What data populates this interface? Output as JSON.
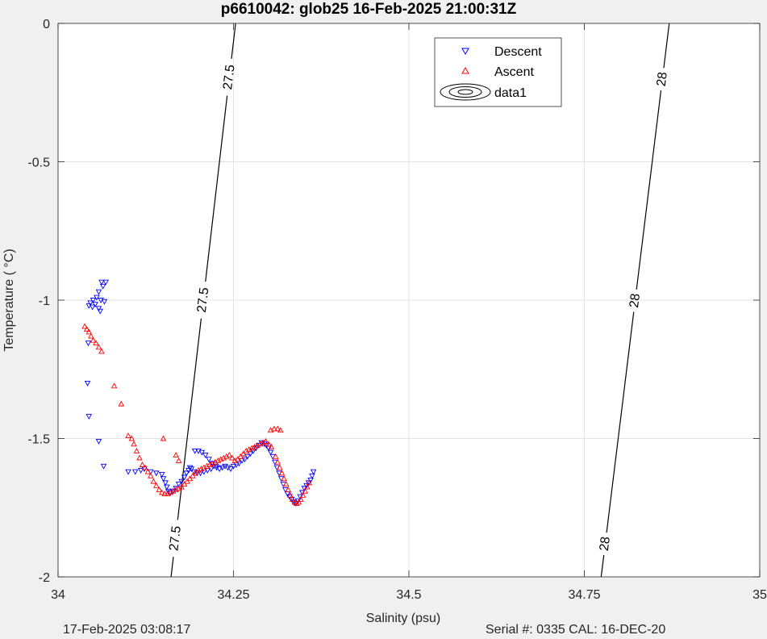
{
  "title": "p6610042: glob25 16-Feb-2025 21:00:31Z",
  "footer": {
    "timestamp": "17-Feb-2025 03:08:17",
    "serial_cal": "Serial #: 0335  CAL: 16-DEC-20"
  },
  "colors": {
    "descent": "#0000ff",
    "ascent": "#ff0000",
    "contour": "#000000",
    "grid": "#e3e3e3",
    "background": "#f0f0f0",
    "plot_bg": "#ffffff"
  },
  "chart_data": {
    "type": "scatter",
    "title": "p6610042: glob25 16-Feb-2025 21:00:31Z",
    "xlabel": "Salinity (psu)",
    "ylabel": "Temperature (   °C)",
    "xlim": [
      34,
      35
    ],
    "ylim": [
      -2,
      0
    ],
    "xticks": [
      34,
      34.25,
      34.5,
      34.75,
      35
    ],
    "xtick_labels": [
      "34",
      "34.25",
      "34.5",
      "34.75",
      "35"
    ],
    "yticks": [
      0,
      -0.5,
      -1,
      -1.5,
      -2
    ],
    "ytick_labels": [
      "0",
      "-0.5",
      "-1",
      "-1.5",
      "-2"
    ],
    "grid": true,
    "legend_placement": "top-center",
    "legend": [
      "Descent",
      "Ascent",
      "data1"
    ],
    "contours": [
      {
        "level": "27.5",
        "points": [
          [
            34.161,
            -2
          ],
          [
            34.253,
            0
          ]
        ],
        "labels": [
          {
            "s": 34.263,
            "t": -0.2,
            "text": "27.5"
          },
          {
            "s": 34.208,
            "t": -1.0,
            "text": "27.5"
          },
          {
            "s": 34.164,
            "t": -1.86,
            "text": "27.5"
          }
        ]
      },
      {
        "level": "28",
        "points": [
          [
            34.774,
            -2
          ],
          [
            34.871,
            0
          ]
        ],
        "labels": [
          {
            "s": 34.856,
            "t": -0.2,
            "text": "28"
          },
          {
            "s": 34.816,
            "t": -1.0,
            "text": "28"
          },
          {
            "s": 34.778,
            "t": -1.88,
            "text": "28"
          }
        ]
      }
    ],
    "series": [
      {
        "name": "Descent",
        "marker": "triangle-down",
        "points": [
          [
            34.062,
            -0.935
          ],
          [
            34.068,
            -0.935
          ],
          [
            34.064,
            -0.95
          ],
          [
            34.058,
            -0.97
          ],
          [
            34.055,
            -0.99
          ],
          [
            34.05,
            -1.0
          ],
          [
            34.046,
            -1.01
          ],
          [
            34.044,
            -1.02
          ],
          [
            34.049,
            -1.025
          ],
          [
            34.053,
            -1.015
          ],
          [
            34.061,
            -1.0
          ],
          [
            34.066,
            -1.005
          ],
          [
            34.058,
            -1.03
          ],
          [
            34.06,
            -1.04
          ],
          [
            34.043,
            -1.155
          ],
          [
            34.042,
            -1.3
          ],
          [
            34.044,
            -1.42
          ],
          [
            34.058,
            -1.51
          ],
          [
            34.065,
            -1.6
          ],
          [
            34.1,
            -1.62
          ],
          [
            34.11,
            -1.62
          ],
          [
            34.118,
            -1.615
          ],
          [
            34.123,
            -1.61
          ],
          [
            34.132,
            -1.62
          ],
          [
            34.14,
            -1.625
          ],
          [
            34.148,
            -1.63
          ],
          [
            34.15,
            -1.645
          ],
          [
            34.153,
            -1.66
          ],
          [
            34.155,
            -1.675
          ],
          [
            34.157,
            -1.69
          ],
          [
            34.16,
            -1.695
          ],
          [
            34.164,
            -1.69
          ],
          [
            34.168,
            -1.68
          ],
          [
            34.172,
            -1.665
          ],
          [
            34.176,
            -1.655
          ],
          [
            34.18,
            -1.64
          ],
          [
            34.183,
            -1.625
          ],
          [
            34.186,
            -1.615
          ],
          [
            34.188,
            -1.605
          ],
          [
            34.19,
            -1.61
          ],
          [
            34.194,
            -1.62
          ],
          [
            34.198,
            -1.625
          ],
          [
            34.203,
            -1.625
          ],
          [
            34.208,
            -1.62
          ],
          [
            34.213,
            -1.615
          ],
          [
            34.218,
            -1.61
          ],
          [
            34.222,
            -1.6
          ],
          [
            34.226,
            -1.605
          ],
          [
            34.23,
            -1.61
          ],
          [
            34.234,
            -1.605
          ],
          [
            34.238,
            -1.6
          ],
          [
            34.242,
            -1.605
          ],
          [
            34.246,
            -1.61
          ],
          [
            34.25,
            -1.6
          ],
          [
            34.254,
            -1.595
          ],
          [
            34.258,
            -1.59
          ],
          [
            34.262,
            -1.58
          ],
          [
            34.266,
            -1.575
          ],
          [
            34.27,
            -1.565
          ],
          [
            34.274,
            -1.555
          ],
          [
            34.278,
            -1.545
          ],
          [
            34.282,
            -1.535
          ],
          [
            34.286,
            -1.525
          ],
          [
            34.29,
            -1.515
          ],
          [
            34.294,
            -1.52
          ],
          [
            34.297,
            -1.525
          ],
          [
            34.3,
            -1.535
          ],
          [
            34.303,
            -1.55
          ],
          [
            34.306,
            -1.565
          ],
          [
            34.309,
            -1.585
          ],
          [
            34.312,
            -1.605
          ],
          [
            34.315,
            -1.625
          ],
          [
            34.318,
            -1.645
          ],
          [
            34.321,
            -1.665
          ],
          [
            34.324,
            -1.685
          ],
          [
            34.327,
            -1.7
          ],
          [
            34.33,
            -1.71
          ],
          [
            34.333,
            -1.72
          ],
          [
            34.336,
            -1.73
          ],
          [
            34.339,
            -1.735
          ],
          [
            34.342,
            -1.725
          ],
          [
            34.345,
            -1.71
          ],
          [
            34.348,
            -1.695
          ],
          [
            34.351,
            -1.68
          ],
          [
            34.354,
            -1.67
          ],
          [
            34.357,
            -1.66
          ],
          [
            34.36,
            -1.65
          ],
          [
            34.362,
            -1.635
          ],
          [
            34.364,
            -1.62
          ],
          [
            34.195,
            -1.545
          ],
          [
            34.2,
            -1.545
          ],
          [
            34.205,
            -1.55
          ],
          [
            34.21,
            -1.56
          ],
          [
            34.215,
            -1.575
          ],
          [
            34.22,
            -1.59
          ],
          [
            34.225,
            -1.6
          ]
        ]
      },
      {
        "name": "Ascent",
        "marker": "triangle-up",
        "points": [
          [
            34.038,
            -1.095
          ],
          [
            34.041,
            -1.105
          ],
          [
            34.044,
            -1.115
          ],
          [
            34.047,
            -1.13
          ],
          [
            34.05,
            -1.145
          ],
          [
            34.054,
            -1.155
          ],
          [
            34.058,
            -1.17
          ],
          [
            34.062,
            -1.185
          ],
          [
            34.08,
            -1.31
          ],
          [
            34.09,
            -1.375
          ],
          [
            34.1,
            -1.49
          ],
          [
            34.105,
            -1.5
          ],
          [
            34.108,
            -1.52
          ],
          [
            34.112,
            -1.545
          ],
          [
            34.116,
            -1.57
          ],
          [
            34.12,
            -1.595
          ],
          [
            34.124,
            -1.605
          ],
          [
            34.128,
            -1.62
          ],
          [
            34.132,
            -1.635
          ],
          [
            34.136,
            -1.655
          ],
          [
            34.14,
            -1.67
          ],
          [
            34.144,
            -1.685
          ],
          [
            34.148,
            -1.695
          ],
          [
            34.152,
            -1.7
          ],
          [
            34.156,
            -1.7
          ],
          [
            34.16,
            -1.695
          ],
          [
            34.164,
            -1.69
          ],
          [
            34.168,
            -1.685
          ],
          [
            34.172,
            -1.68
          ],
          [
            34.176,
            -1.675
          ],
          [
            34.18,
            -1.665
          ],
          [
            34.184,
            -1.655
          ],
          [
            34.188,
            -1.645
          ],
          [
            34.192,
            -1.635
          ],
          [
            34.196,
            -1.625
          ],
          [
            34.2,
            -1.615
          ],
          [
            34.204,
            -1.61
          ],
          [
            34.208,
            -1.605
          ],
          [
            34.212,
            -1.6
          ],
          [
            34.216,
            -1.595
          ],
          [
            34.22,
            -1.59
          ],
          [
            34.224,
            -1.585
          ],
          [
            34.228,
            -1.58
          ],
          [
            34.232,
            -1.575
          ],
          [
            34.236,
            -1.57
          ],
          [
            34.24,
            -1.565
          ],
          [
            34.244,
            -1.56
          ],
          [
            34.248,
            -1.57
          ],
          [
            34.252,
            -1.58
          ],
          [
            34.256,
            -1.575
          ],
          [
            34.26,
            -1.565
          ],
          [
            34.264,
            -1.555
          ],
          [
            34.268,
            -1.545
          ],
          [
            34.272,
            -1.54
          ],
          [
            34.276,
            -1.535
          ],
          [
            34.28,
            -1.53
          ],
          [
            34.284,
            -1.525
          ],
          [
            34.288,
            -1.52
          ],
          [
            34.292,
            -1.515
          ],
          [
            34.296,
            -1.51
          ],
          [
            34.3,
            -1.52
          ],
          [
            34.304,
            -1.53
          ],
          [
            34.303,
            -1.47
          ],
          [
            34.308,
            -1.465
          ],
          [
            34.313,
            -1.465
          ],
          [
            34.317,
            -1.47
          ],
          [
            34.31,
            -1.565
          ],
          [
            34.313,
            -1.585
          ],
          [
            34.316,
            -1.605
          ],
          [
            34.319,
            -1.625
          ],
          [
            34.322,
            -1.645
          ],
          [
            34.325,
            -1.665
          ],
          [
            34.328,
            -1.685
          ],
          [
            34.331,
            -1.705
          ],
          [
            34.334,
            -1.72
          ],
          [
            34.337,
            -1.73
          ],
          [
            34.34,
            -1.735
          ],
          [
            34.343,
            -1.73
          ],
          [
            34.346,
            -1.72
          ],
          [
            34.349,
            -1.705
          ],
          [
            34.352,
            -1.69
          ],
          [
            34.355,
            -1.675
          ],
          [
            34.358,
            -1.66
          ],
          [
            34.15,
            -1.5
          ],
          [
            34.168,
            -1.56
          ],
          [
            34.172,
            -1.58
          ]
        ]
      }
    ]
  }
}
